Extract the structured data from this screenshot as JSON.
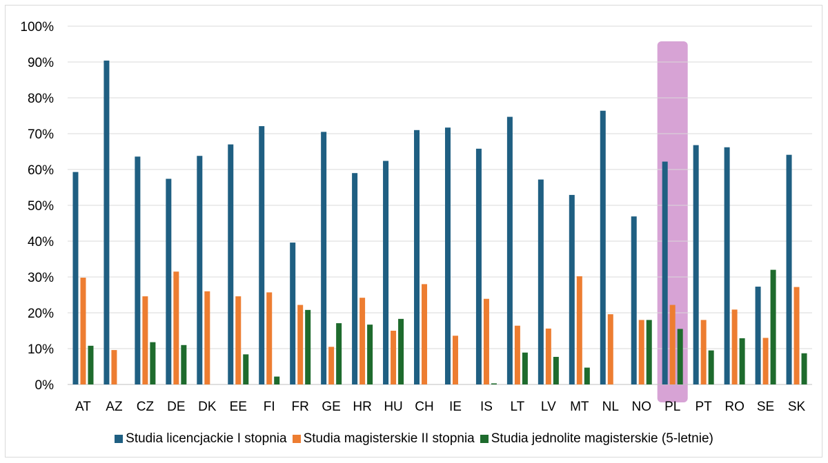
{
  "chart_data": {
    "type": "bar",
    "categories": [
      "AT",
      "AZ",
      "CZ",
      "DE",
      "DK",
      "EE",
      "FI",
      "FR",
      "GE",
      "HR",
      "HU",
      "CH",
      "IE",
      "IS",
      "LT",
      "LV",
      "MT",
      "NL",
      "NO",
      "PL",
      "PT",
      "RO",
      "SE",
      "SK"
    ],
    "series": [
      {
        "name": "Studia licencjackie I stopnia",
        "color": "#1f5f82",
        "values": [
          59.3,
          90.4,
          63.6,
          57.4,
          63.8,
          67.0,
          72.1,
          39.6,
          70.5,
          59.0,
          62.4,
          71.0,
          71.7,
          65.8,
          74.7,
          57.2,
          52.9,
          76.4,
          46.9,
          62.2,
          66.8,
          66.2,
          27.3,
          64.1
        ]
      },
      {
        "name": "Studia magisterskie II stopnia",
        "color": "#ed7d31",
        "values": [
          29.8,
          9.6,
          24.6,
          31.5,
          26.0,
          24.6,
          25.7,
          22.2,
          10.5,
          24.2,
          15.0,
          28.0,
          13.6,
          23.9,
          16.4,
          15.6,
          30.2,
          19.6,
          18.0,
          22.2,
          18.0,
          20.9,
          13.0,
          27.2
        ]
      },
      {
        "name": "Studia jednolite magisterskie (5-letnie)",
        "color": "#1e6b2d",
        "values": [
          10.8,
          0,
          11.8,
          11.0,
          0,
          8.4,
          2.2,
          20.8,
          17.1,
          16.7,
          18.3,
          0,
          0,
          0.3,
          8.9,
          7.7,
          4.7,
          0,
          18.0,
          15.5,
          9.5,
          12.9,
          32.0,
          8.7
        ]
      }
    ],
    "yticks": [
      "0%",
      "10%",
      "20%",
      "30%",
      "40%",
      "50%",
      "60%",
      "70%",
      "80%",
      "90%",
      "100%"
    ],
    "ylim": [
      0,
      100
    ],
    "grid": true,
    "legend_position": "bottom",
    "highlight": {
      "category": "PL",
      "color": "#d7a3d5"
    }
  }
}
